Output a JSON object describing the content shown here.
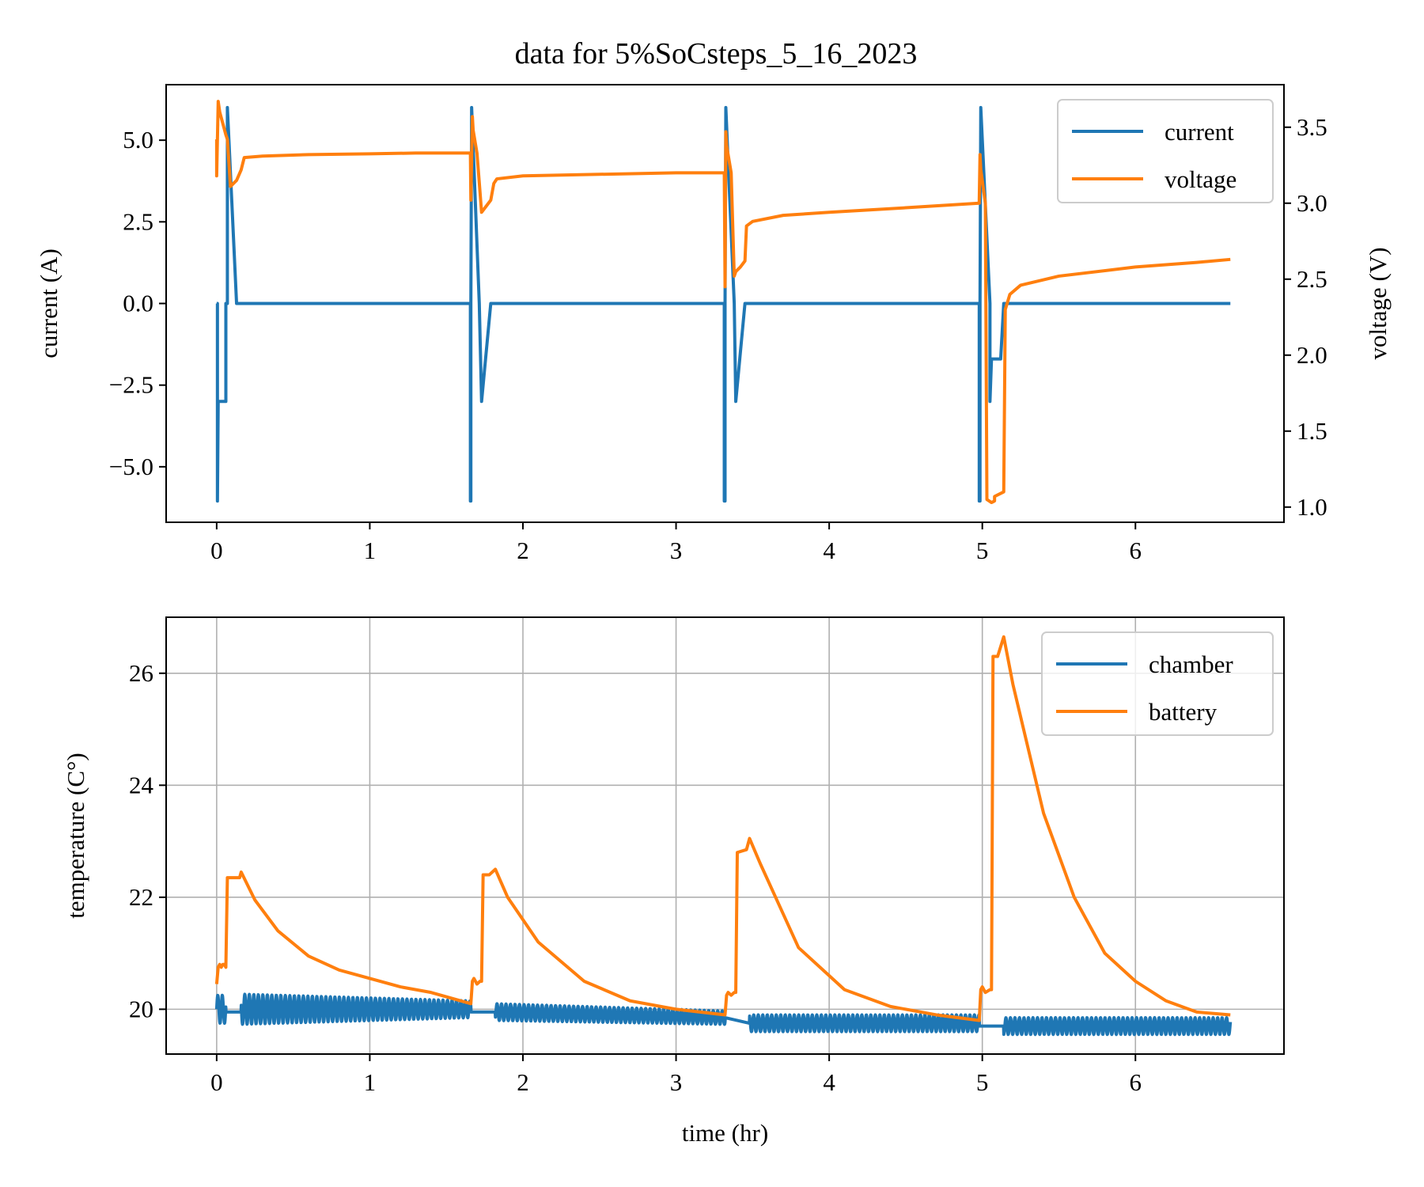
{
  "title": "data for 5%SoCsteps_5_16_2023",
  "colors": {
    "blue": "#1f77b4",
    "orange": "#ff7f0e",
    "grid": "#b0b0b0"
  },
  "chart_data": [
    {
      "type": "line",
      "title": "data for 5%SoCsteps_5_16_2023",
      "xlabel": "",
      "ylabel": "current (A)",
      "y2label": "voltage (V)",
      "xlim": [
        -0.33,
        6.97
      ],
      "ylim": [
        -6.7,
        6.7
      ],
      "y2lim": [
        0.9,
        3.78
      ],
      "xticks": [
        "0",
        "1",
        "2",
        "3",
        "4",
        "5",
        "6"
      ],
      "yticks": [
        "−5.0",
        "−2.5",
        "0.0",
        "2.5",
        "5.0"
      ],
      "y2ticks": [
        "1.0",
        "1.5",
        "2.0",
        "2.5",
        "3.0",
        "3.5"
      ],
      "grid": false,
      "legend_position": "top-right",
      "series": [
        {
          "name": "current",
          "axis": "left",
          "x": [
            0.0,
            0.005,
            0.005,
            0.01,
            0.06,
            0.06,
            0.07,
            0.07,
            0.13,
            0.16,
            0.16,
            1.657,
            1.657,
            1.66,
            1.66,
            1.665,
            1.715,
            1.715,
            1.73,
            1.73,
            1.79,
            1.82,
            1.82,
            3.315,
            3.315,
            3.32,
            3.32,
            3.325,
            3.38,
            3.38,
            3.39,
            3.39,
            3.45,
            3.48,
            3.48,
            4.98,
            4.98,
            4.985,
            4.985,
            4.99,
            5.05,
            5.05,
            5.06,
            5.12,
            5.14,
            6.62
          ],
          "values": [
            0,
            0,
            -6.05,
            -3.0,
            -3.0,
            0,
            0,
            6.0,
            0,
            0,
            0,
            0,
            -6.05,
            -6.05,
            0,
            6.0,
            0,
            0,
            -3.0,
            -3.0,
            0,
            0,
            0,
            0,
            -6.05,
            -6.05,
            0,
            6.0,
            0,
            0,
            -3.0,
            -3.0,
            0,
            0,
            0,
            0,
            -6.05,
            -6.05,
            0,
            6.0,
            0,
            -3.0,
            -1.7,
            -1.7,
            0,
            0
          ]
        },
        {
          "name": "voltage",
          "axis": "right",
          "x": [
            0.0,
            0.0,
            0.01,
            0.02,
            0.06,
            0.07,
            0.09,
            0.13,
            0.16,
            0.18,
            0.3,
            0.6,
            1.0,
            1.3,
            1.657,
            1.66,
            1.67,
            1.675,
            1.7,
            1.73,
            1.76,
            1.79,
            1.81,
            1.83,
            2.0,
            2.5,
            3.0,
            3.315,
            3.32,
            3.325,
            3.33,
            3.36,
            3.38,
            3.39,
            3.42,
            3.45,
            3.46,
            3.5,
            3.7,
            4.0,
            4.5,
            4.98,
            4.98,
            4.985,
            4.99,
            5.02,
            5.03,
            5.06,
            5.08,
            5.08,
            5.14,
            5.15,
            5.18,
            5.25,
            5.5,
            6.0,
            6.4,
            6.62
          ],
          "values": [
            3.42,
            3.18,
            3.67,
            3.6,
            3.45,
            3.42,
            3.11,
            3.15,
            3.22,
            3.3,
            3.31,
            3.32,
            3.325,
            3.33,
            3.33,
            3.02,
            3.57,
            3.48,
            3.33,
            2.94,
            2.98,
            3.02,
            3.13,
            3.16,
            3.18,
            3.19,
            3.2,
            3.2,
            2.45,
            3.47,
            3.38,
            3.2,
            2.52,
            2.55,
            2.58,
            2.62,
            2.85,
            2.88,
            2.92,
            2.94,
            2.97,
            3.0,
            3.02,
            3.32,
            3.22,
            3.0,
            1.05,
            1.03,
            1.04,
            1.07,
            1.1,
            2.3,
            2.4,
            2.46,
            2.52,
            2.58,
            2.61,
            2.63
          ]
        }
      ]
    },
    {
      "type": "line",
      "title": "",
      "xlabel": "time (hr)",
      "ylabel": "temperature (C°)",
      "xlim": [
        -0.33,
        6.97
      ],
      "ylim": [
        19.2,
        27.0
      ],
      "xticks": [
        "0",
        "1",
        "2",
        "3",
        "4",
        "5",
        "6"
      ],
      "yticks": [
        "20",
        "22",
        "24",
        "26"
      ],
      "grid": true,
      "legend_position": "top-right",
      "series": [
        {
          "name": "chamber",
          "base": 20.0,
          "x": [
            0.0,
            0.06,
            0.06,
            0.16,
            0.16,
            1.66,
            1.66,
            1.82,
            1.82,
            3.32,
            3.32,
            3.48,
            3.48,
            4.98,
            4.98,
            5.14,
            5.14,
            6.62
          ],
          "values": [
            20.0,
            20.0,
            19.95,
            19.95,
            20.0,
            20.0,
            19.95,
            19.95,
            19.95,
            19.85,
            19.85,
            19.75,
            19.75,
            19.75,
            19.7,
            19.7,
            19.7,
            19.7
          ],
          "amplitude": [
            0.25,
            0.25,
            0.0,
            0.0,
            0.27,
            0.15,
            0.0,
            0.0,
            0.15,
            0.12,
            0.0,
            0.0,
            0.15,
            0.15,
            0.0,
            0.0,
            0.15,
            0.15
          ],
          "cycles_per_hr": 34
        },
        {
          "name": "battery",
          "x": [
            0.0,
            0.01,
            0.02,
            0.03,
            0.04,
            0.05,
            0.06,
            0.07,
            0.08,
            0.15,
            0.16,
            0.25,
            0.4,
            0.6,
            0.8,
            1.0,
            1.2,
            1.4,
            1.66,
            1.67,
            1.68,
            1.7,
            1.72,
            1.73,
            1.74,
            1.78,
            1.82,
            1.9,
            2.1,
            2.4,
            2.7,
            3.0,
            3.32,
            3.33,
            3.34,
            3.36,
            3.38,
            3.39,
            3.4,
            3.46,
            3.48,
            3.55,
            3.8,
            4.1,
            4.4,
            4.7,
            4.98,
            4.99,
            5.0,
            5.02,
            5.05,
            5.06,
            5.07,
            5.1,
            5.14,
            5.2,
            5.4,
            5.6,
            5.8,
            6.0,
            6.2,
            6.4,
            6.62
          ],
          "values": [
            20.45,
            20.75,
            20.8,
            20.75,
            20.8,
            20.8,
            20.75,
            22.35,
            22.35,
            22.35,
            22.45,
            21.95,
            21.4,
            20.95,
            20.7,
            20.55,
            20.4,
            20.3,
            20.1,
            20.5,
            20.55,
            20.45,
            20.5,
            20.5,
            22.4,
            22.4,
            22.5,
            22.0,
            21.2,
            20.5,
            20.15,
            20.0,
            19.9,
            20.25,
            20.3,
            20.25,
            20.3,
            20.3,
            22.8,
            22.85,
            23.05,
            22.6,
            21.1,
            20.35,
            20.05,
            19.9,
            19.8,
            20.35,
            20.4,
            20.3,
            20.35,
            20.35,
            26.3,
            26.3,
            26.65,
            25.8,
            23.5,
            22.0,
            21.0,
            20.5,
            20.15,
            19.95,
            19.9
          ]
        }
      ]
    }
  ]
}
